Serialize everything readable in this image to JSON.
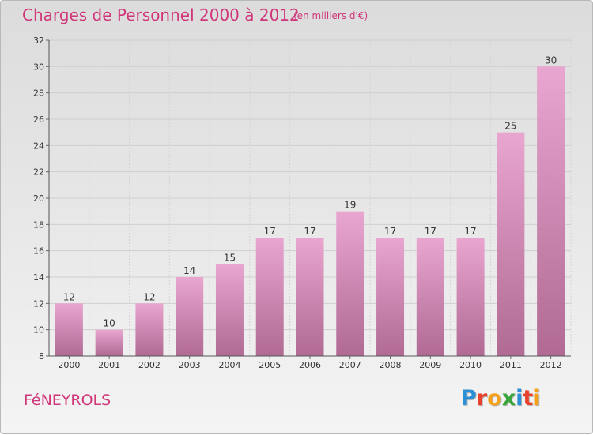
{
  "header": {
    "title": "Charges de Personnel 2000 à 2012",
    "subtitle": "(en milliers d'€)"
  },
  "footer": {
    "commune": "FéNEYROLS",
    "logo": {
      "letters": [
        "P",
        "r",
        "o",
        "x",
        "i",
        "t",
        "i"
      ],
      "colors": [
        "#2a8fd6",
        "#e8412c",
        "#f5a11c",
        "#3aa53a",
        "#2a8fd6",
        "#e8412c",
        "#f5a11c"
      ]
    }
  },
  "colors": {
    "bar_top": "#e9a6d0",
    "bar_bottom": "#b06a94",
    "title": "#d0367a"
  },
  "chart_data": {
    "type": "bar",
    "categories": [
      "2000",
      "2001",
      "2002",
      "2003",
      "2004",
      "2005",
      "2006",
      "2007",
      "2008",
      "2009",
      "2010",
      "2011",
      "2012"
    ],
    "values": [
      12,
      10,
      12,
      14,
      15,
      17,
      17,
      19,
      17,
      17,
      17,
      25,
      30
    ],
    "ylim": [
      8,
      32
    ],
    "yticks": [
      8,
      10,
      12,
      14,
      16,
      18,
      20,
      22,
      24,
      26,
      28,
      30,
      32
    ],
    "grid": true
  }
}
